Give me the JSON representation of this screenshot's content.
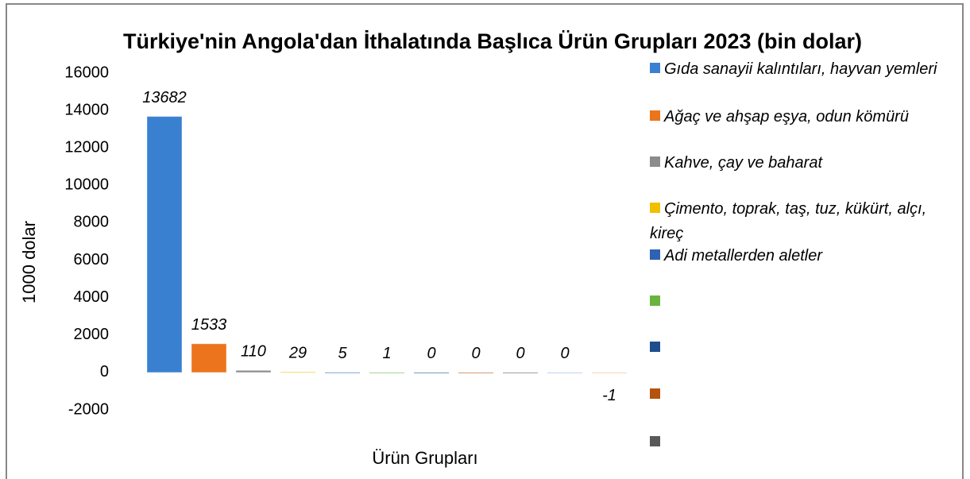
{
  "chart_data": {
    "type": "bar",
    "title": "Türkiye'nin Angola'dan İthalatında Başlıca Ürün Grupları 2023 (bin dolar)",
    "y_label": "1000 dolar",
    "x_label": "Ürün Grupları",
    "values": [
      13682,
      1533,
      110,
      29,
      5,
      1,
      0,
      0,
      0,
      0,
      -1
    ],
    "colors": [
      "#3a80d0",
      "#ec741c",
      "#8c8c8c",
      "#f0c000",
      "#2e62b4",
      "#6ab43e",
      "#1f4e8c",
      "#b4520e",
      "#595959",
      "#8fb3e0",
      "#f4b183"
    ],
    "ylim": [
      -2000,
      16000
    ],
    "yticks": [
      -2000,
      0,
      2000,
      4000,
      6000,
      8000,
      10000,
      12000,
      14000,
      16000
    ],
    "legend": [
      {
        "name": "Gıda sanayii kalıntıları, hayvan yemleri",
        "color": "#3a80d0"
      },
      {
        "name": "Ağaç ve ahşap eşya, odun kömürü",
        "color": "#ec741c"
      },
      {
        "name": "Kahve, çay ve baharat",
        "color": "#8c8c8c"
      },
      {
        "name": "Çimento, toprak, taş, tuz, kükürt, alçı, kireç",
        "color": "#f0c000"
      },
      {
        "name": "Adi metallerden aletler",
        "color": "#2e62b4"
      },
      {
        "name": null,
        "color": "#6ab43e"
      },
      {
        "name": null,
        "color": "#1f4e8c"
      },
      {
        "name": null,
        "color": "#b4520e"
      },
      {
        "name": null,
        "color": "#595959"
      }
    ]
  }
}
